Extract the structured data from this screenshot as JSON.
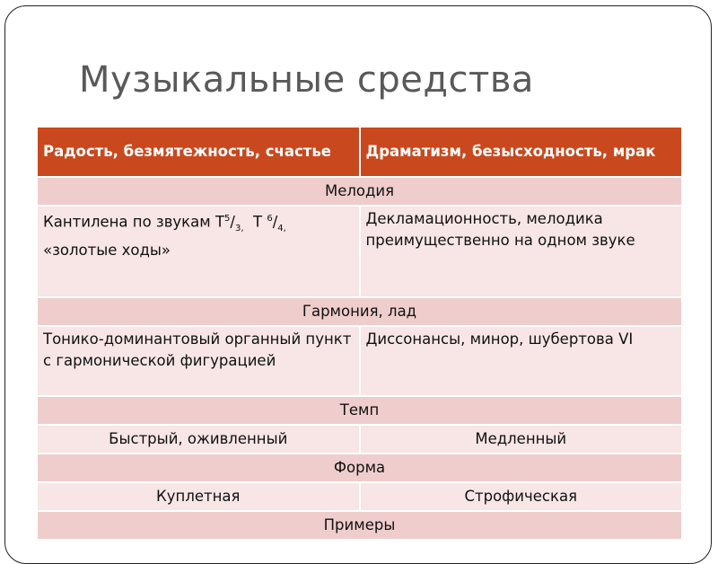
{
  "slide": {
    "title": "Музыкальные средства",
    "header": {
      "left": "Радость, безмятежность, счастье",
      "right": "Драматизм, безысходность, мрак"
    },
    "sections": [
      {
        "label": "Мелодия",
        "left": "Кантилена по звукам Т",
        "right": "Декламационность, мелодика преимущественно на одном звуке"
      },
      {
        "label": "Гармония, лад",
        "left": "Тонико-доминантовый органный пункт с гармонической фигурацией",
        "right": "Диссонансы, минор, шубертова VI"
      },
      {
        "label": "Темп",
        "left": "Быстрый, оживленный",
        "right": "Медленный"
      },
      {
        "label": "Форма",
        "left": "Куплетная",
        "right": "Строфическая"
      },
      {
        "label": "Примеры"
      }
    ],
    "melody_extra": {
      "sup1": "5",
      "sub1": "3,",
      "t2": "Т",
      "sup2": "6",
      "sub2": "4,",
      "line2": "«золотые ходы»"
    },
    "colors": {
      "header": "#C9481D",
      "band": "#EFCDCC",
      "body": "#F7E6E5"
    }
  }
}
